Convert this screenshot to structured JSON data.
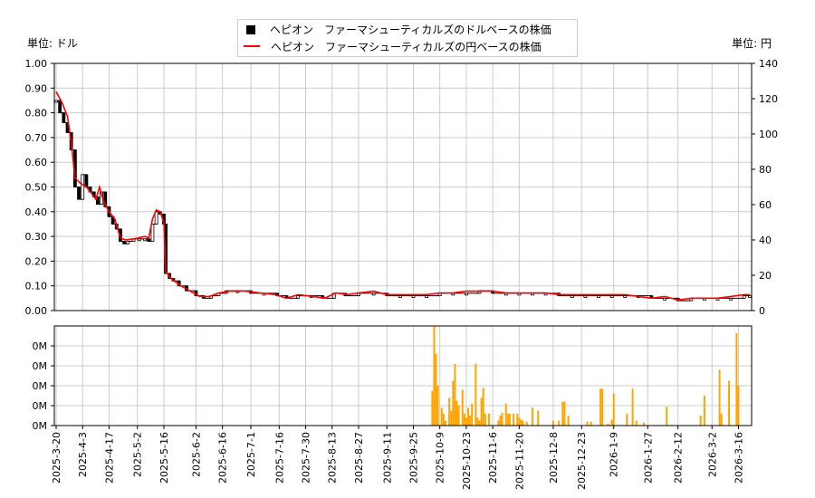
{
  "chart_data": [
    {
      "type": "candlestick-line",
      "ylabel_left": "単位: ドル",
      "ylabel_right": "単位: 円",
      "legend": {
        "placement": "top-center",
        "entries": [
          {
            "label": "ヘピオン　ファーマシューティカルズのドルベースの株価",
            "color": "#000000",
            "marker": "square"
          },
          {
            "label": "ヘピオン　ファーマシューティカルズの円ベースの株価",
            "color": "#ff0000",
            "marker": "line"
          }
        ]
      },
      "y_left_range": [
        0,
        1.0
      ],
      "y_left_ticks": [
        "0.00",
        "0.10",
        "0.20",
        "0.30",
        "0.40",
        "0.50",
        "0.60",
        "0.70",
        "0.80",
        "0.90",
        "1.00"
      ],
      "y_right_range": [
        0,
        140
      ],
      "y_right_ticks": [
        "0",
        "20",
        "40",
        "60",
        "80",
        "100",
        "120",
        "140"
      ],
      "x_range": [
        "2025-03-20",
        "2026-03-22"
      ],
      "grid": true,
      "series": [
        {
          "name": "ヘピオン　ファーマシューティカルズのドルベースの株価",
          "points": [
            [
              "2025-03-20",
              0.85
            ],
            [
              "2025-03-22",
              0.8
            ],
            [
              "2025-03-24",
              0.76
            ],
            [
              "2025-03-26",
              0.72
            ],
            [
              "2025-03-28",
              0.65
            ],
            [
              "2025-03-30",
              0.5
            ],
            [
              "2025-04-01",
              0.45
            ],
            [
              "2025-04-03",
              0.55
            ],
            [
              "2025-04-05",
              0.5
            ],
            [
              "2025-04-07",
              0.48
            ],
            [
              "2025-04-09",
              0.46
            ],
            [
              "2025-04-11",
              0.43
            ],
            [
              "2025-04-13",
              0.48
            ],
            [
              "2025-04-15",
              0.42
            ],
            [
              "2025-04-17",
              0.38
            ],
            [
              "2025-04-19",
              0.35
            ],
            [
              "2025-04-21",
              0.33
            ],
            [
              "2025-04-23",
              0.28
            ],
            [
              "2025-04-25",
              0.27
            ],
            [
              "2025-04-27",
              0.28
            ],
            [
              "2025-04-30",
              0.29
            ],
            [
              "2025-05-03",
              0.29
            ],
            [
              "2025-05-06",
              0.29
            ],
            [
              "2025-05-08",
              0.28
            ],
            [
              "2025-05-10",
              0.35
            ],
            [
              "2025-05-12",
              0.4
            ],
            [
              "2025-05-14",
              0.39
            ],
            [
              "2025-05-16",
              0.35
            ],
            [
              "2025-05-17",
              0.15
            ],
            [
              "2025-05-19",
              0.13
            ],
            [
              "2025-05-21",
              0.12
            ],
            [
              "2025-05-24",
              0.1
            ],
            [
              "2025-05-28",
              0.08
            ],
            [
              "2025-06-02",
              0.06
            ],
            [
              "2025-06-06",
              0.05
            ],
            [
              "2025-06-10",
              0.06
            ],
            [
              "2025-06-14",
              0.07
            ],
            [
              "2025-06-18",
              0.08
            ],
            [
              "2025-06-24",
              0.08
            ],
            [
              "2025-07-01",
              0.07
            ],
            [
              "2025-07-08",
              0.07
            ],
            [
              "2025-07-15",
              0.06
            ],
            [
              "2025-07-20",
              0.05
            ],
            [
              "2025-07-26",
              0.06
            ],
            [
              "2025-08-02",
              0.06
            ],
            [
              "2025-08-08",
              0.05
            ],
            [
              "2025-08-14",
              0.07
            ],
            [
              "2025-08-20",
              0.06
            ],
            [
              "2025-08-27",
              0.07
            ],
            [
              "2025-09-04",
              0.07
            ],
            [
              "2025-09-11",
              0.06
            ],
            [
              "2025-09-18",
              0.06
            ],
            [
              "2025-09-25",
              0.06
            ],
            [
              "2025-10-02",
              0.06
            ],
            [
              "2025-10-09",
              0.07
            ],
            [
              "2025-10-16",
              0.07
            ],
            [
              "2025-10-23",
              0.07
            ],
            [
              "2025-10-30",
              0.08
            ],
            [
              "2025-11-06",
              0.07
            ],
            [
              "2025-11-13",
              0.07
            ],
            [
              "2025-11-20",
              0.07
            ],
            [
              "2025-11-27",
              0.07
            ],
            [
              "2025-12-04",
              0.07
            ],
            [
              "2025-12-11",
              0.06
            ],
            [
              "2025-12-18",
              0.06
            ],
            [
              "2025-12-25",
              0.06
            ],
            [
              "2026-01-01",
              0.06
            ],
            [
              "2026-01-08",
              0.06
            ],
            [
              "2026-01-15",
              0.06
            ],
            [
              "2026-01-22",
              0.06
            ],
            [
              "2026-01-29",
              0.05
            ],
            [
              "2026-02-05",
              0.05
            ],
            [
              "2026-02-12",
              0.04
            ],
            [
              "2026-02-19",
              0.05
            ],
            [
              "2026-02-26",
              0.05
            ],
            [
              "2026-03-05",
              0.05
            ],
            [
              "2026-03-12",
              0.05
            ],
            [
              "2026-03-19",
              0.06
            ],
            [
              "2026-03-22",
              0.06
            ]
          ]
        },
        {
          "name": "ヘピオン　ファーマシューティカルズの円ベースの株価",
          "points": [
            [
              "2025-03-20",
              124
            ],
            [
              "2025-03-23",
              118
            ],
            [
              "2025-03-26",
              110
            ],
            [
              "2025-03-28",
              95
            ],
            [
              "2025-03-30",
              75
            ],
            [
              "2025-04-02",
              72
            ],
            [
              "2025-04-05",
              70
            ],
            [
              "2025-04-08",
              66
            ],
            [
              "2025-04-10",
              63
            ],
            [
              "2025-04-12",
              70
            ],
            [
              "2025-04-14",
              62
            ],
            [
              "2025-04-17",
              56
            ],
            [
              "2025-04-20",
              52
            ],
            [
              "2025-04-23",
              41
            ],
            [
              "2025-04-26",
              40
            ],
            [
              "2025-05-02",
              41
            ],
            [
              "2025-05-06",
              42
            ],
            [
              "2025-05-08",
              41
            ],
            [
              "2025-05-10",
              52
            ],
            [
              "2025-05-12",
              57
            ],
            [
              "2025-05-14",
              56
            ],
            [
              "2025-05-16",
              50
            ],
            [
              "2025-05-17",
              22
            ],
            [
              "2025-05-20",
              18
            ],
            [
              "2025-05-25",
              14
            ],
            [
              "2025-05-30",
              11
            ],
            [
              "2025-06-04",
              8
            ],
            [
              "2025-06-09",
              8
            ],
            [
              "2025-06-14",
              10
            ],
            [
              "2025-06-20",
              11
            ],
            [
              "2025-06-28",
              11
            ],
            [
              "2025-07-06",
              10
            ],
            [
              "2025-07-14",
              9
            ],
            [
              "2025-07-20",
              7
            ],
            [
              "2025-07-26",
              9
            ],
            [
              "2025-08-03",
              8
            ],
            [
              "2025-08-09",
              7
            ],
            [
              "2025-08-15",
              10
            ],
            [
              "2025-08-21",
              9
            ],
            [
              "2025-08-27",
              10
            ],
            [
              "2025-09-04",
              11
            ],
            [
              "2025-09-11",
              9
            ],
            [
              "2025-09-18",
              9
            ],
            [
              "2025-09-25",
              9
            ],
            [
              "2025-10-02",
              9
            ],
            [
              "2025-10-09",
              10
            ],
            [
              "2025-10-16",
              10
            ],
            [
              "2025-10-23",
              11
            ],
            [
              "2025-10-30",
              11
            ],
            [
              "2025-11-06",
              11
            ],
            [
              "2025-11-13",
              10
            ],
            [
              "2025-11-20",
              10
            ],
            [
              "2025-11-27",
              10
            ],
            [
              "2025-12-04",
              10
            ],
            [
              "2025-12-11",
              9
            ],
            [
              "2025-12-18",
              9
            ],
            [
              "2025-12-25",
              9
            ],
            [
              "2026-01-01",
              9
            ],
            [
              "2026-01-08",
              9
            ],
            [
              "2026-01-15",
              9
            ],
            [
              "2026-01-22",
              8
            ],
            [
              "2026-01-29",
              7
            ],
            [
              "2026-02-05",
              8
            ],
            [
              "2026-02-12",
              6
            ],
            [
              "2026-02-19",
              7
            ],
            [
              "2026-02-26",
              7
            ],
            [
              "2026-03-05",
              7
            ],
            [
              "2026-03-12",
              8
            ],
            [
              "2026-03-19",
              9
            ],
            [
              "2026-03-22",
              9
            ]
          ]
        }
      ]
    },
    {
      "type": "bar",
      "y_ticks": [
        "0M",
        "0M",
        "0M",
        "0M",
        "0M"
      ],
      "y_range": [
        0,
        1
      ],
      "grid": true,
      "color": "#ffa500",
      "x_tick_labels": [
        "2025-3-20",
        "2025-4-3",
        "2025-4-17",
        "2025-5-2",
        "2025-5-16",
        "2025-6-2",
        "2025-6-16",
        "2025-7-1",
        "2025-7-16",
        "2025-7-30",
        "2025-8-13",
        "2025-8-27",
        "2025-9-11",
        "2025-9-25",
        "2025-10-9",
        "2025-10-23",
        "2025-11-6",
        "2025-11-20",
        "2025-12-8",
        "2025-12-23",
        "2026-1-9",
        "2026-1-27",
        "2026-2-12",
        "2026-3-2",
        "2026-3-16"
      ],
      "x_tick_dates": [
        "2025-03-20",
        "2025-04-03",
        "2025-04-17",
        "2025-05-02",
        "2025-05-16",
        "2025-06-02",
        "2025-06-16",
        "2025-07-01",
        "2025-07-16",
        "2025-07-30",
        "2025-08-13",
        "2025-08-27",
        "2025-09-11",
        "2025-09-25",
        "2025-10-09",
        "2025-10-23",
        "2025-11-06",
        "2025-11-20",
        "2025-12-08",
        "2025-12-23",
        "2026-01-09",
        "2026-01-27",
        "2026-02-12",
        "2026-03-02",
        "2026-03-16"
      ],
      "bars": [
        [
          "2025-10-05",
          0.35
        ],
        [
          "2025-10-06",
          1.0
        ],
        [
          "2025-10-07",
          0.72
        ],
        [
          "2025-10-08",
          0.4
        ],
        [
          "2025-10-10",
          0.18
        ],
        [
          "2025-10-11",
          0.12
        ],
        [
          "2025-10-12",
          0.05
        ],
        [
          "2025-10-14",
          0.28
        ],
        [
          "2025-10-15",
          0.15
        ],
        [
          "2025-10-16",
          0.45
        ],
        [
          "2025-10-17",
          0.62
        ],
        [
          "2025-10-18",
          0.25
        ],
        [
          "2025-10-19",
          0.2
        ],
        [
          "2025-10-21",
          0.36
        ],
        [
          "2025-10-22",
          0.12
        ],
        [
          "2025-10-23",
          0.08
        ],
        [
          "2025-10-24",
          0.18
        ],
        [
          "2025-10-25",
          0.1
        ],
        [
          "2025-10-26",
          0.22
        ],
        [
          "2025-10-28",
          0.62
        ],
        [
          "2025-10-29",
          0.08
        ],
        [
          "2025-10-30",
          0.05
        ],
        [
          "2025-10-31",
          0.28
        ],
        [
          "2025-11-01",
          0.38
        ],
        [
          "2025-11-02",
          0.12
        ],
        [
          "2025-11-04",
          0.12
        ],
        [
          "2025-11-09",
          0.05
        ],
        [
          "2025-11-10",
          0.1
        ],
        [
          "2025-11-11",
          0.13
        ],
        [
          "2025-11-13",
          0.22
        ],
        [
          "2025-11-14",
          0.12
        ],
        [
          "2025-11-15",
          0.12
        ],
        [
          "2025-11-17",
          0.12
        ],
        [
          "2025-11-19",
          0.12
        ],
        [
          "2025-11-20",
          0.08
        ],
        [
          "2025-11-21",
          0.06
        ],
        [
          "2025-11-22",
          0.05
        ],
        [
          "2025-11-24",
          0.04
        ],
        [
          "2025-11-27",
          0.18
        ],
        [
          "2025-11-30",
          0.15
        ],
        [
          "2025-12-08",
          0.05
        ],
        [
          "2025-12-11",
          0.05
        ],
        [
          "2025-12-13",
          0.24
        ],
        [
          "2025-12-14",
          0.24
        ],
        [
          "2025-12-16",
          0.1
        ],
        [
          "2025-12-26",
          0.04
        ],
        [
          "2025-12-28",
          0.04
        ],
        [
          "2026-01-02",
          0.37
        ],
        [
          "2026-01-03",
          0.37
        ],
        [
          "2026-01-06",
          0.02
        ],
        [
          "2026-01-08",
          0.06
        ],
        [
          "2026-01-09",
          0.32
        ],
        [
          "2026-01-16",
          0.12
        ],
        [
          "2026-01-19",
          0.37
        ],
        [
          "2026-01-21",
          0.05
        ],
        [
          "2026-01-25",
          0.03
        ],
        [
          "2026-02-06",
          0.19
        ],
        [
          "2026-02-24",
          0.1
        ],
        [
          "2026-02-26",
          0.3
        ],
        [
          "2026-03-06",
          0.56
        ],
        [
          "2026-03-07",
          0.12
        ],
        [
          "2026-03-11",
          0.45
        ],
        [
          "2026-03-15",
          0.93
        ],
        [
          "2026-03-16",
          0.4
        ]
      ]
    }
  ]
}
